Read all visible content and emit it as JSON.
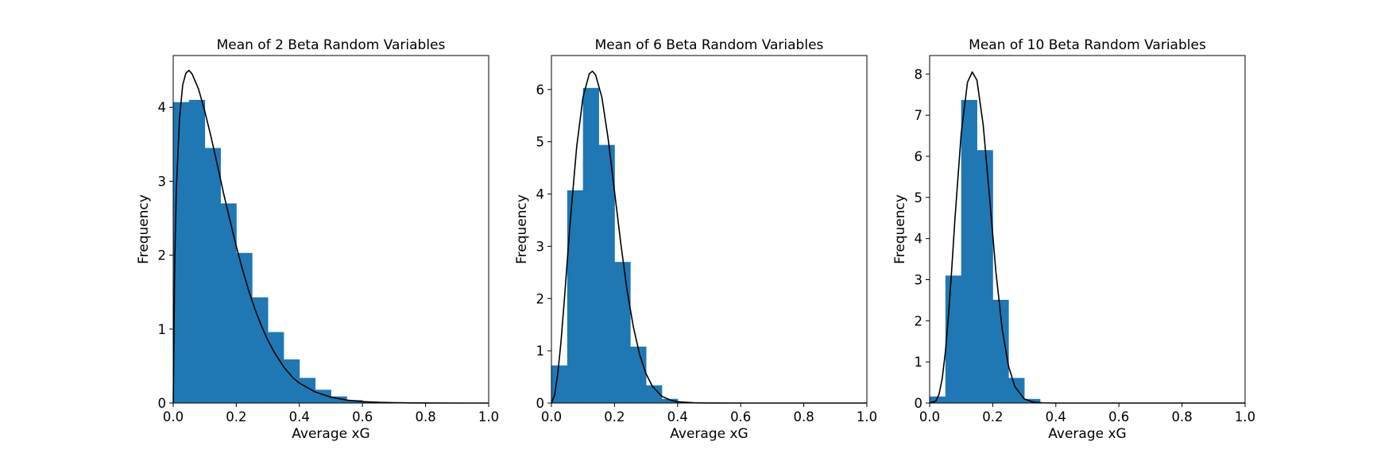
{
  "chart_data": [
    {
      "type": "bar",
      "title": "Mean of 2 Beta Random Variables",
      "xlabel": "Average xG",
      "ylabel": "Frequency",
      "xlim": [
        0,
        1
      ],
      "ylim": [
        0,
        4.7
      ],
      "xticks": [
        "0.0",
        "0.2",
        "0.4",
        "0.6",
        "0.8",
        "1.0"
      ],
      "yticks": [
        0,
        1,
        2,
        3,
        4
      ],
      "bar_color": "#1f77b4",
      "bins": [
        {
          "x0": 0.0,
          "x1": 0.05,
          "value": 4.07
        },
        {
          "x0": 0.05,
          "x1": 0.1,
          "value": 4.1
        },
        {
          "x0": 0.1,
          "x1": 0.15,
          "value": 3.45
        },
        {
          "x0": 0.15,
          "x1": 0.2,
          "value": 2.7
        },
        {
          "x0": 0.2,
          "x1": 0.25,
          "value": 2.03
        },
        {
          "x0": 0.25,
          "x1": 0.3,
          "value": 1.43
        },
        {
          "x0": 0.3,
          "x1": 0.35,
          "value": 0.96
        },
        {
          "x0": 0.35,
          "x1": 0.4,
          "value": 0.59
        },
        {
          "x0": 0.4,
          "x1": 0.45,
          "value": 0.34
        },
        {
          "x0": 0.45,
          "x1": 0.5,
          "value": 0.18
        },
        {
          "x0": 0.5,
          "x1": 0.55,
          "value": 0.09
        },
        {
          "x0": 0.55,
          "x1": 0.6,
          "value": 0.04
        },
        {
          "x0": 0.6,
          "x1": 0.65,
          "value": 0.02
        }
      ],
      "curve": {
        "color": "#000000",
        "x": [
          0.0,
          0.005,
          0.01,
          0.02,
          0.03,
          0.04,
          0.05,
          0.06,
          0.08,
          0.1,
          0.12,
          0.14,
          0.16,
          0.18,
          0.2,
          0.22,
          0.24,
          0.26,
          0.28,
          0.3,
          0.32,
          0.35,
          0.38,
          0.4,
          0.45,
          0.5,
          0.55,
          0.6,
          0.65,
          0.7,
          0.75,
          0.8,
          0.9,
          1.0
        ],
        "y": [
          0.0,
          1.95,
          2.9,
          3.85,
          4.3,
          4.46,
          4.5,
          4.45,
          4.25,
          3.95,
          3.6,
          3.22,
          2.83,
          2.47,
          2.12,
          1.8,
          1.51,
          1.26,
          1.04,
          0.85,
          0.69,
          0.49,
          0.34,
          0.27,
          0.15,
          0.08,
          0.04,
          0.02,
          0.01,
          0.005,
          0.002,
          0.001,
          0.0,
          0.0
        ]
      }
    },
    {
      "type": "bar",
      "title": "Mean of 6 Beta Random Variables",
      "xlabel": "Average xG",
      "ylabel": "Frequency",
      "xlim": [
        0,
        1
      ],
      "ylim": [
        0,
        6.65
      ],
      "xticks": [
        "0.0",
        "0.2",
        "0.4",
        "0.6",
        "0.8",
        "1.0"
      ],
      "yticks": [
        0,
        1,
        2,
        3,
        4,
        5,
        6
      ],
      "bar_color": "#1f77b4",
      "bins": [
        {
          "x0": 0.0,
          "x1": 0.05,
          "value": 0.72
        },
        {
          "x0": 0.05,
          "x1": 0.1,
          "value": 4.07
        },
        {
          "x0": 0.1,
          "x1": 0.15,
          "value": 6.03
        },
        {
          "x0": 0.15,
          "x1": 0.2,
          "value": 4.94
        },
        {
          "x0": 0.2,
          "x1": 0.25,
          "value": 2.7
        },
        {
          "x0": 0.25,
          "x1": 0.3,
          "value": 1.08
        },
        {
          "x0": 0.3,
          "x1": 0.35,
          "value": 0.34
        },
        {
          "x0": 0.35,
          "x1": 0.4,
          "value": 0.08
        },
        {
          "x0": 0.4,
          "x1": 0.45,
          "value": 0.02
        }
      ],
      "curve": {
        "color": "#000000",
        "x": [
          0.0,
          0.01,
          0.02,
          0.03,
          0.04,
          0.05,
          0.06,
          0.08,
          0.1,
          0.12,
          0.13,
          0.14,
          0.16,
          0.18,
          0.2,
          0.22,
          0.24,
          0.26,
          0.28,
          0.3,
          0.32,
          0.35,
          0.38,
          0.4,
          0.45,
          0.5,
          0.6,
          0.8,
          1.0
        ],
        "y": [
          0.0,
          0.15,
          0.55,
          1.15,
          1.9,
          2.7,
          3.5,
          4.9,
          5.85,
          6.3,
          6.35,
          6.28,
          5.85,
          5.05,
          4.05,
          3.05,
          2.15,
          1.45,
          0.92,
          0.56,
          0.32,
          0.13,
          0.05,
          0.025,
          0.005,
          0.001,
          0.0,
          0.0,
          0.0
        ]
      }
    },
    {
      "type": "bar",
      "title": "Mean of 10 Beta Random Variables",
      "xlabel": "Average xG",
      "ylabel": "Frequency",
      "xlim": [
        0,
        1
      ],
      "ylim": [
        0,
        8.45
      ],
      "xticks": [
        "0.0",
        "0.2",
        "0.4",
        "0.6",
        "0.8",
        "1.0"
      ],
      "yticks": [
        0,
        1,
        2,
        3,
        4,
        5,
        6,
        7,
        8
      ],
      "bar_color": "#1f77b4",
      "bins": [
        {
          "x0": 0.0,
          "x1": 0.05,
          "value": 0.16
        },
        {
          "x0": 0.05,
          "x1": 0.1,
          "value": 3.1
        },
        {
          "x0": 0.1,
          "x1": 0.15,
          "value": 7.37
        },
        {
          "x0": 0.15,
          "x1": 0.2,
          "value": 6.15
        },
        {
          "x0": 0.2,
          "x1": 0.25,
          "value": 2.51
        },
        {
          "x0": 0.25,
          "x1": 0.3,
          "value": 0.61
        },
        {
          "x0": 0.3,
          "x1": 0.35,
          "value": 0.1
        },
        {
          "x0": 0.35,
          "x1": 0.4,
          "value": 0.01
        }
      ],
      "curve": {
        "color": "#000000",
        "x": [
          0.0,
          0.02,
          0.03,
          0.04,
          0.05,
          0.06,
          0.07,
          0.08,
          0.1,
          0.12,
          0.135,
          0.15,
          0.17,
          0.19,
          0.21,
          0.23,
          0.25,
          0.27,
          0.3,
          0.33,
          0.36,
          0.4,
          0.5,
          0.6,
          0.8,
          1.0
        ],
        "y": [
          0.0,
          0.05,
          0.22,
          0.6,
          1.25,
          2.15,
          3.25,
          4.45,
          6.55,
          7.8,
          8.05,
          7.85,
          6.75,
          5.0,
          3.2,
          1.8,
          0.9,
          0.4,
          0.1,
          0.02,
          0.005,
          0.0,
          0.0,
          0.0,
          0.0,
          0.0
        ]
      }
    }
  ]
}
